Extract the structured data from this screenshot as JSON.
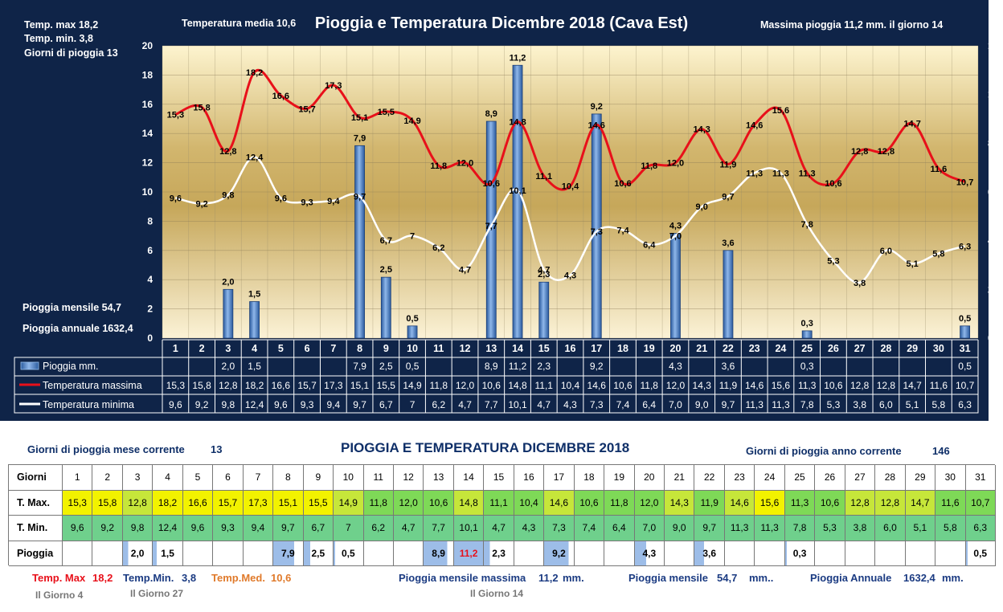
{
  "header": {
    "title": "Pioggia e Temperatura Dicembre 2018 (Cava Est)",
    "temp_max": "Temp. max  18,2",
    "temp_min": "Temp.  min. 3,8",
    "rain_days": "Giorni  di pioggia   13",
    "temp_avg": "Temperatura media  10,6",
    "max_rain": "Massima pioggia  11,2 mm.  il giorno 14",
    "monthly_rain": "Pioggia mensile    54,7",
    "annual_rain": "Pioggia annuale   1632,4"
  },
  "chart_data": {
    "type": "bar+line",
    "title": "Pioggia e Temperatura Dicembre 2018 (Cava Est)",
    "x": [
      "1",
      "2",
      "3",
      "4",
      "5",
      "6",
      "7",
      "8",
      "9",
      "10",
      "11",
      "12",
      "13",
      "14",
      "15",
      "16",
      "17",
      "18",
      "19",
      "20",
      "21",
      "22",
      "23",
      "24",
      "25",
      "26",
      "27",
      "28",
      "29",
      "30",
      "31"
    ],
    "left_axis": {
      "min": 0,
      "max": 20,
      "ticks": [
        "0",
        "2",
        "4",
        "6",
        "8",
        "10",
        "12",
        "14",
        "16",
        "18",
        "20"
      ]
    },
    "right_axis": {
      "min": 0,
      "max": 12,
      "ticks": [
        "0",
        "2",
        "4",
        "6",
        "8",
        "10",
        "12"
      ]
    },
    "series": [
      {
        "name": "Pioggia mm.",
        "axis": "right",
        "color": "#4f86c6",
        "values": [
          null,
          null,
          2.0,
          1.5,
          null,
          null,
          null,
          7.9,
          2.5,
          0.5,
          null,
          null,
          8.9,
          11.2,
          2.3,
          null,
          9.2,
          null,
          null,
          4.3,
          null,
          3.6,
          null,
          null,
          0.3,
          null,
          null,
          null,
          null,
          null,
          0.5
        ],
        "labels": [
          "",
          "",
          "2,0",
          "1,5",
          "",
          "",
          "",
          "7,9",
          "2,5",
          "0,5",
          "",
          "",
          "8,9",
          "11,2",
          "2,3",
          "",
          "9,2",
          "",
          "",
          "4,3",
          "",
          "3,6",
          "",
          "",
          "0,3",
          "",
          "",
          "",
          "",
          "",
          "0,5"
        ]
      },
      {
        "name": "Temperatura massima",
        "axis": "left",
        "color": "#e8101a",
        "values": [
          15.3,
          15.8,
          12.8,
          18.2,
          16.6,
          15.7,
          17.3,
          15.1,
          15.5,
          14.9,
          11.8,
          12.0,
          10.6,
          14.8,
          11.1,
          10.4,
          14.6,
          10.6,
          11.8,
          12.0,
          14.3,
          11.9,
          14.6,
          15.6,
          11.3,
          10.6,
          12.8,
          12.8,
          14.7,
          11.6,
          10.7
        ],
        "labels": [
          "15,3",
          "15,8",
          "12,8",
          "18,2",
          "16,6",
          "15,7",
          "17,3",
          "15,1",
          "15,5",
          "14,9",
          "11,8",
          "12,0",
          "10,6",
          "14,8",
          "11,1",
          "10,4",
          "14,6",
          "10,6",
          "11,8",
          "12,0",
          "14,3",
          "11,9",
          "14,6",
          "15,6",
          "11,3",
          "10,6",
          "12,8",
          "12,8",
          "14,7",
          "11,6",
          "10,7"
        ]
      },
      {
        "name": "Temperatura minima",
        "axis": "left",
        "color": "#ffffff",
        "values": [
          9.6,
          9.2,
          9.8,
          12.4,
          9.6,
          9.3,
          9.4,
          9.7,
          6.7,
          7,
          6.2,
          4.7,
          7.7,
          10.1,
          4.7,
          4.3,
          7.3,
          7.4,
          6.4,
          7.0,
          9.0,
          9.7,
          11.3,
          11.3,
          7.8,
          5.3,
          3.8,
          6.0,
          5.1,
          5.8,
          6.3
        ],
        "labels": [
          "9,6",
          "9,2",
          "9,8",
          "12,4",
          "9,6",
          "9,3",
          "9,4",
          "9,7",
          "6,7",
          "7",
          "6,2",
          "4,7",
          "7,7",
          "10,1",
          "4,7",
          "4,3",
          "7,3",
          "7,4",
          "6,4",
          "7,0",
          "9,0",
          "9,7",
          "11,3",
          "11,3",
          "7,8",
          "5,3",
          "3,8",
          "6,0",
          "5,1",
          "5,8",
          "6,3"
        ]
      }
    ]
  },
  "bottom": {
    "title": "PIOGGIA E TEMPERATURA DICEMBRE 2018",
    "rain_days_month_label": "Giorni di pioggia mese corrente",
    "rain_days_month": "13",
    "rain_days_year_label": "Giorni di pioggia anno corrente",
    "rain_days_year": "146",
    "row_labels": [
      "Giorni",
      "T. Max.",
      "T. Min.",
      "Pioggia"
    ],
    "rain_cells": [
      "",
      "",
      "2,0",
      "1,5",
      "",
      "",
      "",
      "7,9",
      "2,5",
      "0,5",
      "",
      "",
      "8,9",
      "11,2",
      "2,3",
      "",
      "9,2",
      "",
      "",
      "4,3",
      "",
      "3,6",
      "",
      "",
      "0,3",
      "",
      "",
      "",
      "",
      "",
      "0,5"
    ],
    "footer": {
      "temp_max_label": "Temp. Max",
      "temp_max": "18,2",
      "temp_max_day": "Il Giorno  4",
      "temp_min_label": "Temp.Min.",
      "temp_min": "3,8",
      "temp_min_day": "Il Giorno 27",
      "temp_med_label": "Temp.Med.",
      "temp_med": "10,6",
      "max_rain_label": "Pioggia mensile massima",
      "max_rain": "11,2",
      "max_rain_unit": "mm.",
      "max_rain_day": "Il Giorno 14",
      "monthly_label": "Pioggia mensile",
      "monthly": "54,7",
      "monthly_unit": "mm..",
      "annual_label": "Pioggia Annuale",
      "annual": "1632,4",
      "annual_unit": "mm."
    }
  },
  "colors": {
    "rain": "#4f86c6",
    "tmax": "#e8101a",
    "tmin": "#ffffff",
    "bg": "#0f2448",
    "yellow": "#f2f200",
    "green": "#7ed957",
    "teal": "#5fc7a0"
  }
}
